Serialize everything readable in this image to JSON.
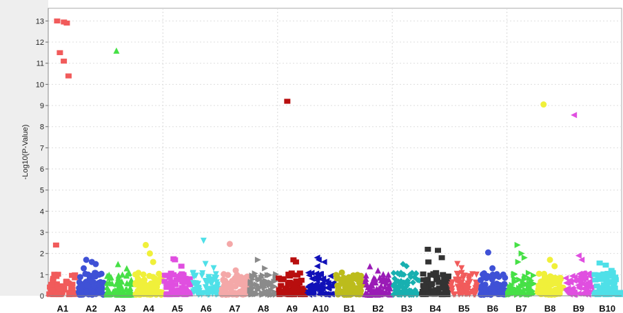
{
  "chart_data": {
    "type": "scatter",
    "title": "",
    "xlabel": "",
    "ylabel": "-Log10(P-Value)",
    "ylim": [
      0,
      13.6
    ],
    "yticks": [
      0,
      1,
      2,
      3,
      4,
      5,
      6,
      7,
      8,
      9,
      10,
      11,
      12,
      13
    ],
    "grid": true,
    "legend": "none",
    "categories": [
      "A1",
      "A2",
      "A3",
      "A4",
      "A5",
      "A6",
      "A7",
      "A8",
      "A9",
      "A10",
      "B1",
      "B2",
      "B3",
      "B4",
      "B5",
      "B6",
      "B7",
      "B8",
      "B9",
      "B10"
    ],
    "series": [
      {
        "category": "A1",
        "color": "#f15b5b",
        "marker": "square",
        "peaks": [
          13.0,
          12.95,
          12.9,
          11.5,
          11.1,
          10.4,
          2.4
        ]
      },
      {
        "category": "A2",
        "color": "#3f51d6",
        "marker": "circle",
        "peaks": [
          1.7,
          1.6,
          1.5,
          1.3
        ]
      },
      {
        "category": "A3",
        "color": "#46e046",
        "marker": "triangle-up",
        "peaks": [
          11.6,
          1.5,
          1.3
        ]
      },
      {
        "category": "A4",
        "color": "#f0f03a",
        "marker": "circle",
        "peaks": [
          2.4,
          2.0,
          1.6
        ]
      },
      {
        "category": "A5",
        "color": "#e04fe0",
        "marker": "square",
        "peaks": [
          1.75,
          1.7,
          1.4
        ]
      },
      {
        "category": "A6",
        "color": "#4fe0e8",
        "marker": "triangle-down",
        "peaks": [
          2.6,
          1.5,
          1.3
        ]
      },
      {
        "category": "A7",
        "color": "#f4a8a8",
        "marker": "circle",
        "peaks": [
          2.45,
          1.2
        ]
      },
      {
        "category": "A8",
        "color": "#8a8a8a",
        "marker": "triangle-right",
        "peaks": [
          1.7,
          1.3
        ]
      },
      {
        "category": "A9",
        "color": "#b80e0e",
        "marker": "square",
        "peaks": [
          9.2,
          1.7,
          1.6
        ]
      },
      {
        "category": "A10",
        "color": "#1010b8",
        "marker": "triangle-left",
        "peaks": [
          1.8,
          1.7,
          1.6,
          1.4
        ]
      },
      {
        "category": "B1",
        "color": "#bcbc1c",
        "marker": "circle",
        "peaks": [
          0.8,
          0.7
        ]
      },
      {
        "category": "B2",
        "color": "#9a1bb6",
        "marker": "triangle-up",
        "peaks": [
          1.4,
          1.2
        ]
      },
      {
        "category": "B3",
        "color": "#18b0b0",
        "marker": "diamond",
        "peaks": [
          1.5,
          1.4
        ]
      },
      {
        "category": "B4",
        "color": "#333333",
        "marker": "square",
        "peaks": [
          2.2,
          2.15,
          1.8,
          1.6
        ]
      },
      {
        "category": "B5",
        "color": "#f15b5b",
        "marker": "triangle-down",
        "peaks": [
          1.5,
          1.3
        ]
      },
      {
        "category": "B6",
        "color": "#3f51d6",
        "marker": "circle",
        "peaks": [
          2.05,
          1.3
        ]
      },
      {
        "category": "B7",
        "color": "#46e046",
        "marker": "triangle-right",
        "peaks": [
          2.4,
          2.0,
          1.8,
          1.6
        ]
      },
      {
        "category": "B8",
        "color": "#f0f03a",
        "marker": "circle",
        "peaks": [
          9.05,
          1.7,
          1.4
        ]
      },
      {
        "category": "B9",
        "color": "#e04fe0",
        "marker": "triangle-left",
        "peaks": [
          8.55,
          1.9,
          1.7
        ]
      },
      {
        "category": "B10",
        "color": "#4fe0e8",
        "marker": "square",
        "peaks": [
          1.55,
          1.45,
          1.2
        ]
      }
    ]
  }
}
